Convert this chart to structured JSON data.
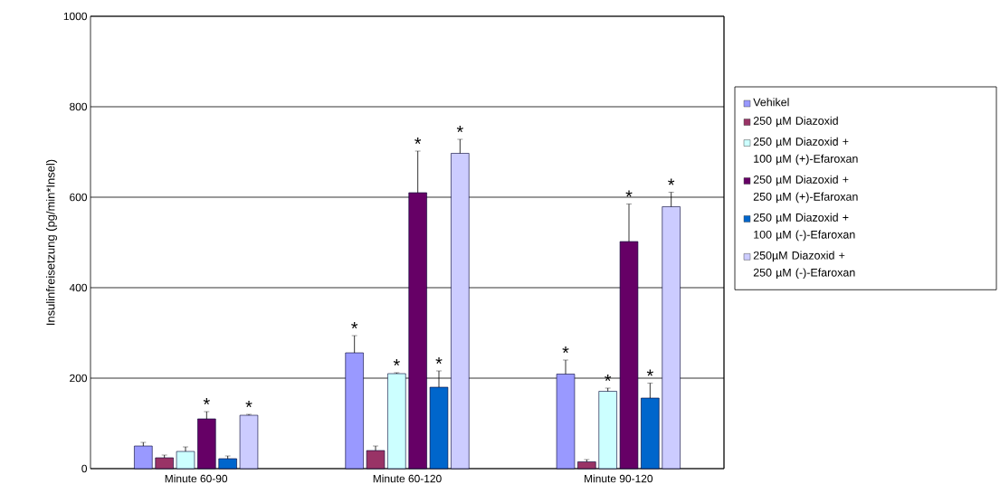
{
  "chart_data": {
    "type": "bar",
    "ylabel": "Insulinfreisetzung (pg/min*Insel)",
    "categories": [
      "Minute 60-90",
      "Minute 60-120",
      "Minute 90-120"
    ],
    "ylim": [
      0,
      1000
    ],
    "yticks": [
      0,
      200,
      400,
      600,
      800,
      1000
    ],
    "grid": "y",
    "legend": "right",
    "series": [
      {
        "name": "Vehikel",
        "color": "#9999ff",
        "values": [
          50,
          256,
          209
        ],
        "errors": [
          8,
          38,
          31
        ],
        "value_labels": [
          null,
          "*",
          "*"
        ]
      },
      {
        "name": "250 µM Diazoxid",
        "color": "#993366",
        "values": [
          24,
          40,
          15
        ],
        "errors": [
          6,
          10,
          5
        ],
        "value_labels": [
          null,
          null,
          null
        ]
      },
      {
        "name": "250 µM Diazoxid + 100 µM (+)-Efaroxan",
        "color": "#ccffff",
        "values": [
          38,
          210,
          171
        ],
        "errors": [
          10,
          2,
          7
        ],
        "value_labels": [
          null,
          "*",
          "*"
        ]
      },
      {
        "name": "250 µM Diazoxid + 250 µM (+)-Efaroxan",
        "color": "#660066",
        "values": [
          110,
          610,
          502
        ],
        "errors": [
          16,
          92,
          83
        ],
        "value_labels": [
          "*",
          "*",
          "*"
        ]
      },
      {
        "name": "250 µM Diazoxid + 100 µM (-)-Efaroxan",
        "color": "#0066cc",
        "values": [
          22,
          180,
          156
        ],
        "errors": [
          6,
          36,
          33
        ],
        "value_labels": [
          null,
          "*",
          "*"
        ]
      },
      {
        "name": "250µM Diazoxid + 250 µM (-)-Efaroxan",
        "color": "#ccccff",
        "values": [
          118,
          697,
          579
        ],
        "errors": [
          2,
          31,
          32
        ],
        "value_labels": [
          "*",
          "*",
          "*"
        ]
      }
    ]
  }
}
